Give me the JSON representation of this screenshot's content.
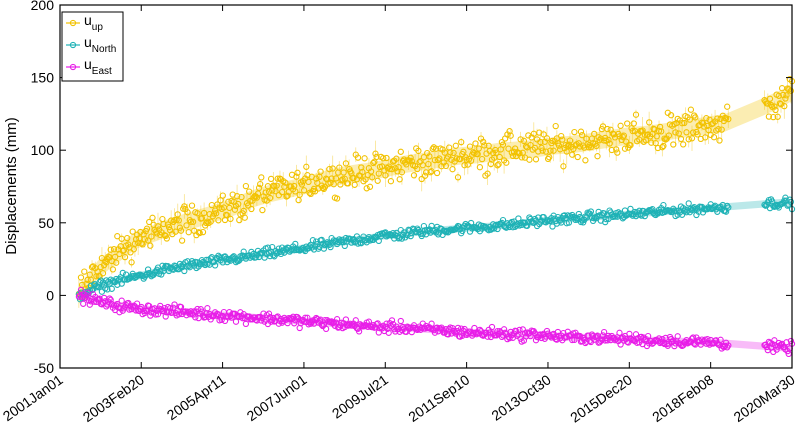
{
  "chart_data": {
    "type": "scatter",
    "title": "",
    "xlabel": "",
    "ylabel": "Displacements (mm)",
    "xlim": [
      "2001-01-01",
      "2020-03-30"
    ],
    "ylim": [
      -50,
      200
    ],
    "y_ticks": [
      -50,
      0,
      50,
      100,
      150,
      200
    ],
    "x_ticks": [
      {
        "date": "2001-01-01",
        "label": "2001Jan01"
      },
      {
        "date": "2003-02-20",
        "label": "2003Feb20"
      },
      {
        "date": "2005-04-11",
        "label": "2005Apr11"
      },
      {
        "date": "2007-06-01",
        "label": "2007Jun01"
      },
      {
        "date": "2009-07-21",
        "label": "2009Jul21"
      },
      {
        "date": "2011-09-10",
        "label": "2011Sep10"
      },
      {
        "date": "2013-10-30",
        "label": "2013Oct30"
      },
      {
        "date": "2015-12-20",
        "label": "2015Dec20"
      },
      {
        "date": "2018-02-08",
        "label": "2018Feb08"
      },
      {
        "date": "2020-03-30",
        "label": "2020Mar30"
      }
    ],
    "grid": false,
    "legend_position": "top-left",
    "data_gap": [
      "2018-08-01",
      "2019-07-01"
    ],
    "series": [
      {
        "name": "u",
        "subscript": "up",
        "color": "#f2c200",
        "points": [
          [
            "2001-07-01",
            0
          ],
          [
            "2002-01-01",
            18
          ],
          [
            "2002-07-01",
            28
          ],
          [
            "2003-01-01",
            38
          ],
          [
            "2003-07-01",
            43
          ],
          [
            "2004-01-01",
            48
          ],
          [
            "2004-07-01",
            52
          ],
          [
            "2005-01-01",
            56
          ],
          [
            "2005-07-01",
            60
          ],
          [
            "2006-01-01",
            66
          ],
          [
            "2006-07-01",
            70
          ],
          [
            "2007-01-01",
            73
          ],
          [
            "2007-07-01",
            76
          ],
          [
            "2008-01-01",
            80
          ],
          [
            "2008-07-01",
            83
          ],
          [
            "2009-01-01",
            85
          ],
          [
            "2009-07-01",
            87
          ],
          [
            "2010-01-01",
            90
          ],
          [
            "2010-07-01",
            92
          ],
          [
            "2011-01-01",
            94
          ],
          [
            "2011-07-01",
            96
          ],
          [
            "2012-01-01",
            97
          ],
          [
            "2012-07-01",
            99
          ],
          [
            "2013-01-01",
            100
          ],
          [
            "2013-07-01",
            101
          ],
          [
            "2014-01-01",
            103
          ],
          [
            "2014-07-01",
            104
          ],
          [
            "2015-01-01",
            106
          ],
          [
            "2015-07-01",
            108
          ],
          [
            "2016-01-01",
            110
          ],
          [
            "2016-07-01",
            111
          ],
          [
            "2017-01-01",
            113
          ],
          [
            "2017-07-01",
            115
          ],
          [
            "2018-01-01",
            117
          ],
          [
            "2018-07-01",
            119
          ],
          [
            "2019-07-01",
            130
          ],
          [
            "2020-01-01",
            136
          ],
          [
            "2020-03-30",
            140
          ]
        ]
      },
      {
        "name": "u",
        "subscript": "North",
        "color": "#1fb2b6",
        "points": [
          [
            "2001-07-01",
            0
          ],
          [
            "2002-01-01",
            6
          ],
          [
            "2002-07-01",
            10
          ],
          [
            "2003-01-01",
            13
          ],
          [
            "2003-07-01",
            16
          ],
          [
            "2004-01-01",
            19
          ],
          [
            "2004-07-01",
            21
          ],
          [
            "2005-01-01",
            23
          ],
          [
            "2005-07-01",
            25
          ],
          [
            "2006-01-01",
            27
          ],
          [
            "2006-07-01",
            29
          ],
          [
            "2007-01-01",
            31
          ],
          [
            "2007-07-01",
            33
          ],
          [
            "2008-01-01",
            35
          ],
          [
            "2008-07-01",
            37
          ],
          [
            "2009-01-01",
            39
          ],
          [
            "2009-07-01",
            41
          ],
          [
            "2010-01-01",
            42
          ],
          [
            "2010-07-01",
            44
          ],
          [
            "2011-01-01",
            45
          ],
          [
            "2011-07-01",
            46
          ],
          [
            "2012-01-01",
            47
          ],
          [
            "2012-07-01",
            48
          ],
          [
            "2013-01-01",
            49
          ],
          [
            "2013-07-01",
            51
          ],
          [
            "2014-01-01",
            52
          ],
          [
            "2014-07-01",
            53
          ],
          [
            "2015-01-01",
            54
          ],
          [
            "2015-07-01",
            55
          ],
          [
            "2016-01-01",
            56
          ],
          [
            "2016-07-01",
            57
          ],
          [
            "2017-01-01",
            58
          ],
          [
            "2017-07-01",
            59
          ],
          [
            "2018-01-01",
            60
          ],
          [
            "2018-07-01",
            61
          ],
          [
            "2019-07-01",
            63
          ],
          [
            "2020-01-01",
            64
          ],
          [
            "2020-03-30",
            63
          ]
        ]
      },
      {
        "name": "u",
        "subscript": "East",
        "color": "#e81ee8",
        "points": [
          [
            "2001-07-01",
            0
          ],
          [
            "2002-01-01",
            -4
          ],
          [
            "2002-07-01",
            -7
          ],
          [
            "2003-01-01",
            -9
          ],
          [
            "2003-07-01",
            -10
          ],
          [
            "2004-01-01",
            -11
          ],
          [
            "2004-07-01",
            -12
          ],
          [
            "2005-01-01",
            -13
          ],
          [
            "2005-07-01",
            -14
          ],
          [
            "2006-01-01",
            -15
          ],
          [
            "2006-07-01",
            -16
          ],
          [
            "2007-01-01",
            -17
          ],
          [
            "2007-07-01",
            -18
          ],
          [
            "2008-01-01",
            -19
          ],
          [
            "2008-07-01",
            -20
          ],
          [
            "2009-01-01",
            -21
          ],
          [
            "2009-07-01",
            -22
          ],
          [
            "2010-01-01",
            -22
          ],
          [
            "2010-07-01",
            -23
          ],
          [
            "2011-01-01",
            -24
          ],
          [
            "2011-07-01",
            -25
          ],
          [
            "2012-01-01",
            -26
          ],
          [
            "2012-07-01",
            -26
          ],
          [
            "2013-01-01",
            -27
          ],
          [
            "2013-07-01",
            -27
          ],
          [
            "2014-01-01",
            -28
          ],
          [
            "2014-07-01",
            -29
          ],
          [
            "2015-01-01",
            -29
          ],
          [
            "2015-07-01",
            -30
          ],
          [
            "2016-01-01",
            -30
          ],
          [
            "2016-07-01",
            -31
          ],
          [
            "2017-01-01",
            -31
          ],
          [
            "2017-07-01",
            -32
          ],
          [
            "2018-01-01",
            -32
          ],
          [
            "2018-07-01",
            -33
          ],
          [
            "2019-07-01",
            -35
          ],
          [
            "2020-01-01",
            -36
          ],
          [
            "2020-03-30",
            -36
          ]
        ]
      }
    ]
  }
}
